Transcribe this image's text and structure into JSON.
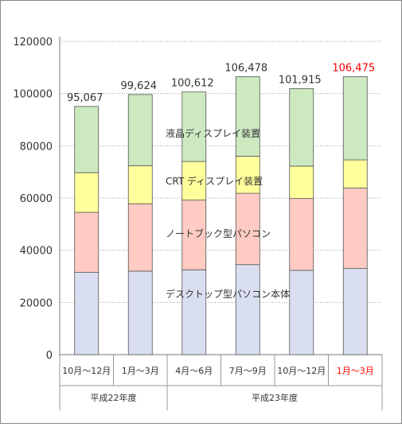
{
  "colors": {
    "segment_fills": [
      "#d9dff0",
      "#ffcbc2",
      "#ffff9c",
      "#cce9c0"
    ],
    "highlight": "#ff0000",
    "grid": "#9a9a9a",
    "bar_stroke": "#555555",
    "frame": "#888888",
    "text": "#333333"
  },
  "chart_data": {
    "type": "bar",
    "stacked": true,
    "title": "",
    "xlabel": "",
    "ylabel": "",
    "ylim": [
      0,
      120000
    ],
    "y_ticks": [
      "0",
      "20000",
      "40000",
      "60000",
      "80000",
      "100000",
      "120000"
    ],
    "grid": "horizontal",
    "categories": [
      "10月～12月",
      "1月～3月",
      "4月～6月",
      "7月～9月",
      "10月～12月",
      "1月～3月"
    ],
    "highlight_index": 5,
    "groups": [
      {
        "label": "平成22年度",
        "start": 0,
        "end": 1
      },
      {
        "label": "平成23年度",
        "start": 2,
        "end": 5
      }
    ],
    "totals": [
      "95,067",
      "99,624",
      "100,612",
      "106,478",
      "101,915",
      "106,475"
    ],
    "series": [
      {
        "name": "デスクトップ型パソコン本体",
        "values": [
          31500,
          32000,
          32500,
          34500,
          32300,
          33000
        ]
      },
      {
        "name": "ノートブック型パソコン",
        "values": [
          23000,
          25800,
          26700,
          27300,
          27500,
          30800
        ]
      },
      {
        "name": "CRT ディスプレイ装置",
        "values": [
          15200,
          14600,
          14800,
          14200,
          12400,
          10800
        ]
      },
      {
        "name": "液晶ディスプレイ装置",
        "values": [
          25367,
          27224,
          26612,
          30478,
          29715,
          31875
        ]
      }
    ]
  }
}
